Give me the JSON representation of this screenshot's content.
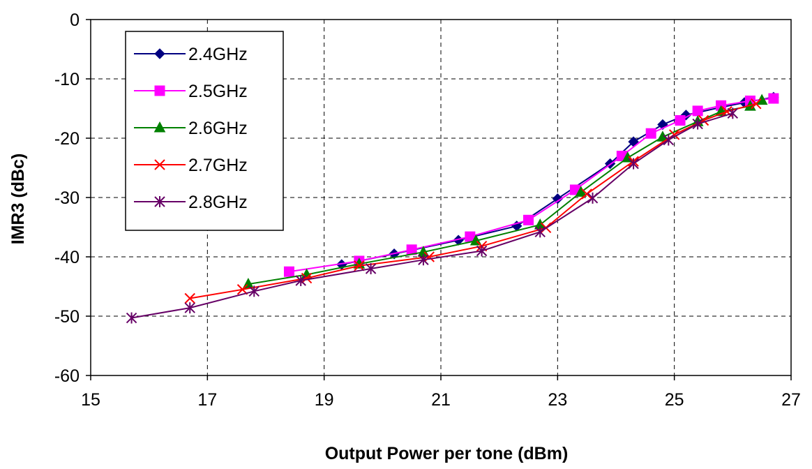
{
  "chart_data": {
    "type": "line",
    "title": "",
    "xlabel": "Output Power per tone (dBm)",
    "ylabel": "IMR3 (dBc)",
    "xlim": [
      15,
      27
    ],
    "ylim": [
      -60,
      0
    ],
    "xticks": [
      15,
      17,
      19,
      21,
      23,
      25,
      27
    ],
    "yticks": [
      0,
      -10,
      -20,
      -30,
      -40,
      -50,
      -60
    ],
    "grid": true,
    "legend_position": "top-left",
    "series": [
      {
        "name": "2.4GHz",
        "color": "#000080",
        "marker": "diamond",
        "points": [
          [
            19.3,
            -41.3
          ],
          [
            20.2,
            -39.5
          ],
          [
            21.3,
            -37.2
          ],
          [
            22.3,
            -34.8
          ],
          [
            23.0,
            -30.2
          ],
          [
            23.9,
            -24.3
          ],
          [
            24.3,
            -20.6
          ],
          [
            24.8,
            -17.7
          ],
          [
            25.2,
            -16.1
          ],
          [
            25.8,
            -14.8
          ],
          [
            26.2,
            -14.0
          ],
          [
            26.7,
            -13.1
          ]
        ]
      },
      {
        "name": "2.5GHz",
        "color": "#FF00FF",
        "marker": "square",
        "points": [
          [
            18.4,
            -42.5
          ],
          [
            19.6,
            -40.7
          ],
          [
            20.5,
            -38.8
          ],
          [
            21.5,
            -36.6
          ],
          [
            22.5,
            -33.8
          ],
          [
            23.3,
            -28.7
          ],
          [
            24.1,
            -23.0
          ],
          [
            24.6,
            -19.2
          ],
          [
            25.1,
            -17.0
          ],
          [
            25.4,
            -15.4
          ],
          [
            25.8,
            -14.5
          ],
          [
            26.3,
            -13.7
          ],
          [
            26.7,
            -13.3
          ]
        ]
      },
      {
        "name": "2.6GHz",
        "color": "#008000",
        "marker": "triangle",
        "points": [
          [
            17.7,
            -44.6
          ],
          [
            18.7,
            -43.0
          ],
          [
            19.6,
            -41.2
          ],
          [
            20.7,
            -39.2
          ],
          [
            21.6,
            -37.3
          ],
          [
            22.7,
            -34.6
          ],
          [
            23.4,
            -29.1
          ],
          [
            24.2,
            -23.3
          ],
          [
            24.8,
            -19.8
          ],
          [
            25.4,
            -17.2
          ],
          [
            25.8,
            -15.5
          ],
          [
            26.3,
            -14.6
          ],
          [
            26.5,
            -13.6
          ]
        ]
      },
      {
        "name": "2.7GHz",
        "color": "#FF0000",
        "marker": "x",
        "points": [
          [
            16.7,
            -47.0
          ],
          [
            17.6,
            -45.5
          ],
          [
            18.7,
            -43.6
          ],
          [
            19.6,
            -41.5
          ],
          [
            20.8,
            -40.0
          ],
          [
            21.7,
            -38.2
          ],
          [
            22.8,
            -35.1
          ],
          [
            23.5,
            -29.4
          ],
          [
            24.3,
            -23.9
          ],
          [
            25.0,
            -19.4
          ],
          [
            25.5,
            -17.0
          ],
          [
            25.9,
            -15.5
          ],
          [
            26.4,
            -14.2
          ]
        ]
      },
      {
        "name": "2.8GHz",
        "color": "#660066",
        "marker": "asterisk",
        "points": [
          [
            15.7,
            -50.3
          ],
          [
            16.7,
            -48.6
          ],
          [
            17.8,
            -45.8
          ],
          [
            18.6,
            -44.0
          ],
          [
            19.8,
            -42.0
          ],
          [
            20.7,
            -40.5
          ],
          [
            21.7,
            -39.0
          ],
          [
            22.7,
            -35.8
          ],
          [
            23.6,
            -30.1
          ],
          [
            24.3,
            -24.3
          ],
          [
            24.9,
            -20.3
          ],
          [
            25.4,
            -17.6
          ],
          [
            26.0,
            -15.8
          ]
        ]
      }
    ]
  }
}
